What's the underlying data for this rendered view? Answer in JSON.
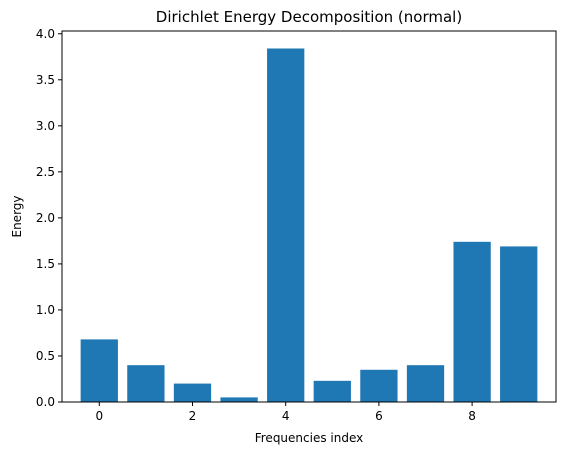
{
  "chart_data": {
    "type": "bar",
    "title": "Dirichlet Energy Decomposition (normal)",
    "xlabel": "Frequencies index",
    "ylabel": "Energy",
    "x": [
      0,
      1,
      2,
      3,
      4,
      5,
      6,
      7,
      8,
      9
    ],
    "values": [
      0.68,
      0.4,
      0.2,
      0.05,
      3.84,
      0.23,
      0.35,
      0.4,
      1.74,
      1.69
    ],
    "xlim": [
      -0.8,
      9.8
    ],
    "ylim": [
      0,
      4.03
    ],
    "xticks": [
      0,
      2,
      4,
      6,
      8
    ],
    "xtick_labels": [
      "0",
      "2",
      "4",
      "6",
      "8"
    ],
    "yticks": [
      0.0,
      0.5,
      1.0,
      1.5,
      2.0,
      2.5,
      3.0,
      3.5,
      4.0
    ],
    "ytick_labels": [
      "0.0",
      "0.5",
      "1.0",
      "1.5",
      "2.0",
      "2.5",
      "3.0",
      "3.5",
      "4.0"
    ],
    "bar_color": "#1f77b4",
    "grid": false,
    "legend": "none"
  }
}
